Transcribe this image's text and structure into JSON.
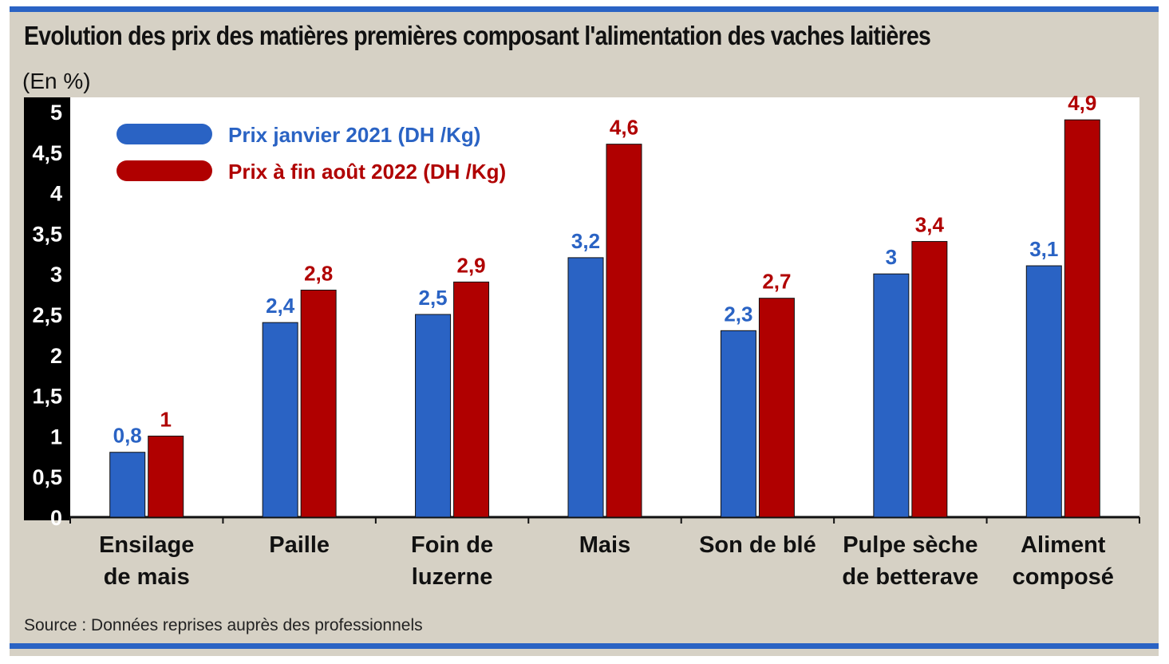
{
  "colors": {
    "series_2021": "#2a63c4",
    "series_2022": "#b00000",
    "background": "#d6d1c5",
    "plot_background": "#ffffff",
    "y_axis_band": "#000000",
    "accent_rule": "#2a63c4"
  },
  "chart_data": {
    "type": "bar",
    "title": "Evolution des prix des matières premières composant l'alimentation des vaches laitières",
    "ylabel": "(En %)",
    "xlabel": "",
    "ylim": [
      0,
      5
    ],
    "yticks": [
      {
        "value": 0,
        "label": "0"
      },
      {
        "value": 0.5,
        "label": "0,5"
      },
      {
        "value": 1,
        "label": "1"
      },
      {
        "value": 1.5,
        "label": "1,5"
      },
      {
        "value": 2,
        "label": "2"
      },
      {
        "value": 2.5,
        "label": "2,5"
      },
      {
        "value": 3,
        "label": "3"
      },
      {
        "value": 3.5,
        "label": "3,5"
      },
      {
        "value": 4,
        "label": "4"
      },
      {
        "value": 4.5,
        "label": "4,5"
      },
      {
        "value": 5,
        "label": "5"
      }
    ],
    "categories": [
      [
        "Ensilage",
        "de mais"
      ],
      [
        "Paille"
      ],
      [
        "Foin de",
        "luzerne"
      ],
      [
        "Mais"
      ],
      [
        "Son de blé"
      ],
      [
        "Pulpe sèche",
        "de betterave"
      ],
      [
        "Aliment",
        "composé"
      ]
    ],
    "series": [
      {
        "name": "Prix janvier 2021 (DH /Kg)",
        "values": [
          0.8,
          2.4,
          2.5,
          3.2,
          2.3,
          3.0,
          3.1
        ],
        "labels": [
          "0,8",
          "2,4",
          "2,5",
          "3,2",
          "2,3",
          "3",
          "3,1"
        ]
      },
      {
        "name": "Prix à fin août 2022 (DH /Kg)",
        "values": [
          1.0,
          2.8,
          2.9,
          4.6,
          2.7,
          3.4,
          4.9
        ],
        "labels": [
          "1",
          "2,8",
          "2,9",
          "4,6",
          "2,7",
          "3,4",
          "4,9"
        ]
      }
    ],
    "legend_position": "top-left",
    "grid": false
  },
  "source": "Source : Données reprises auprès des professionnels"
}
